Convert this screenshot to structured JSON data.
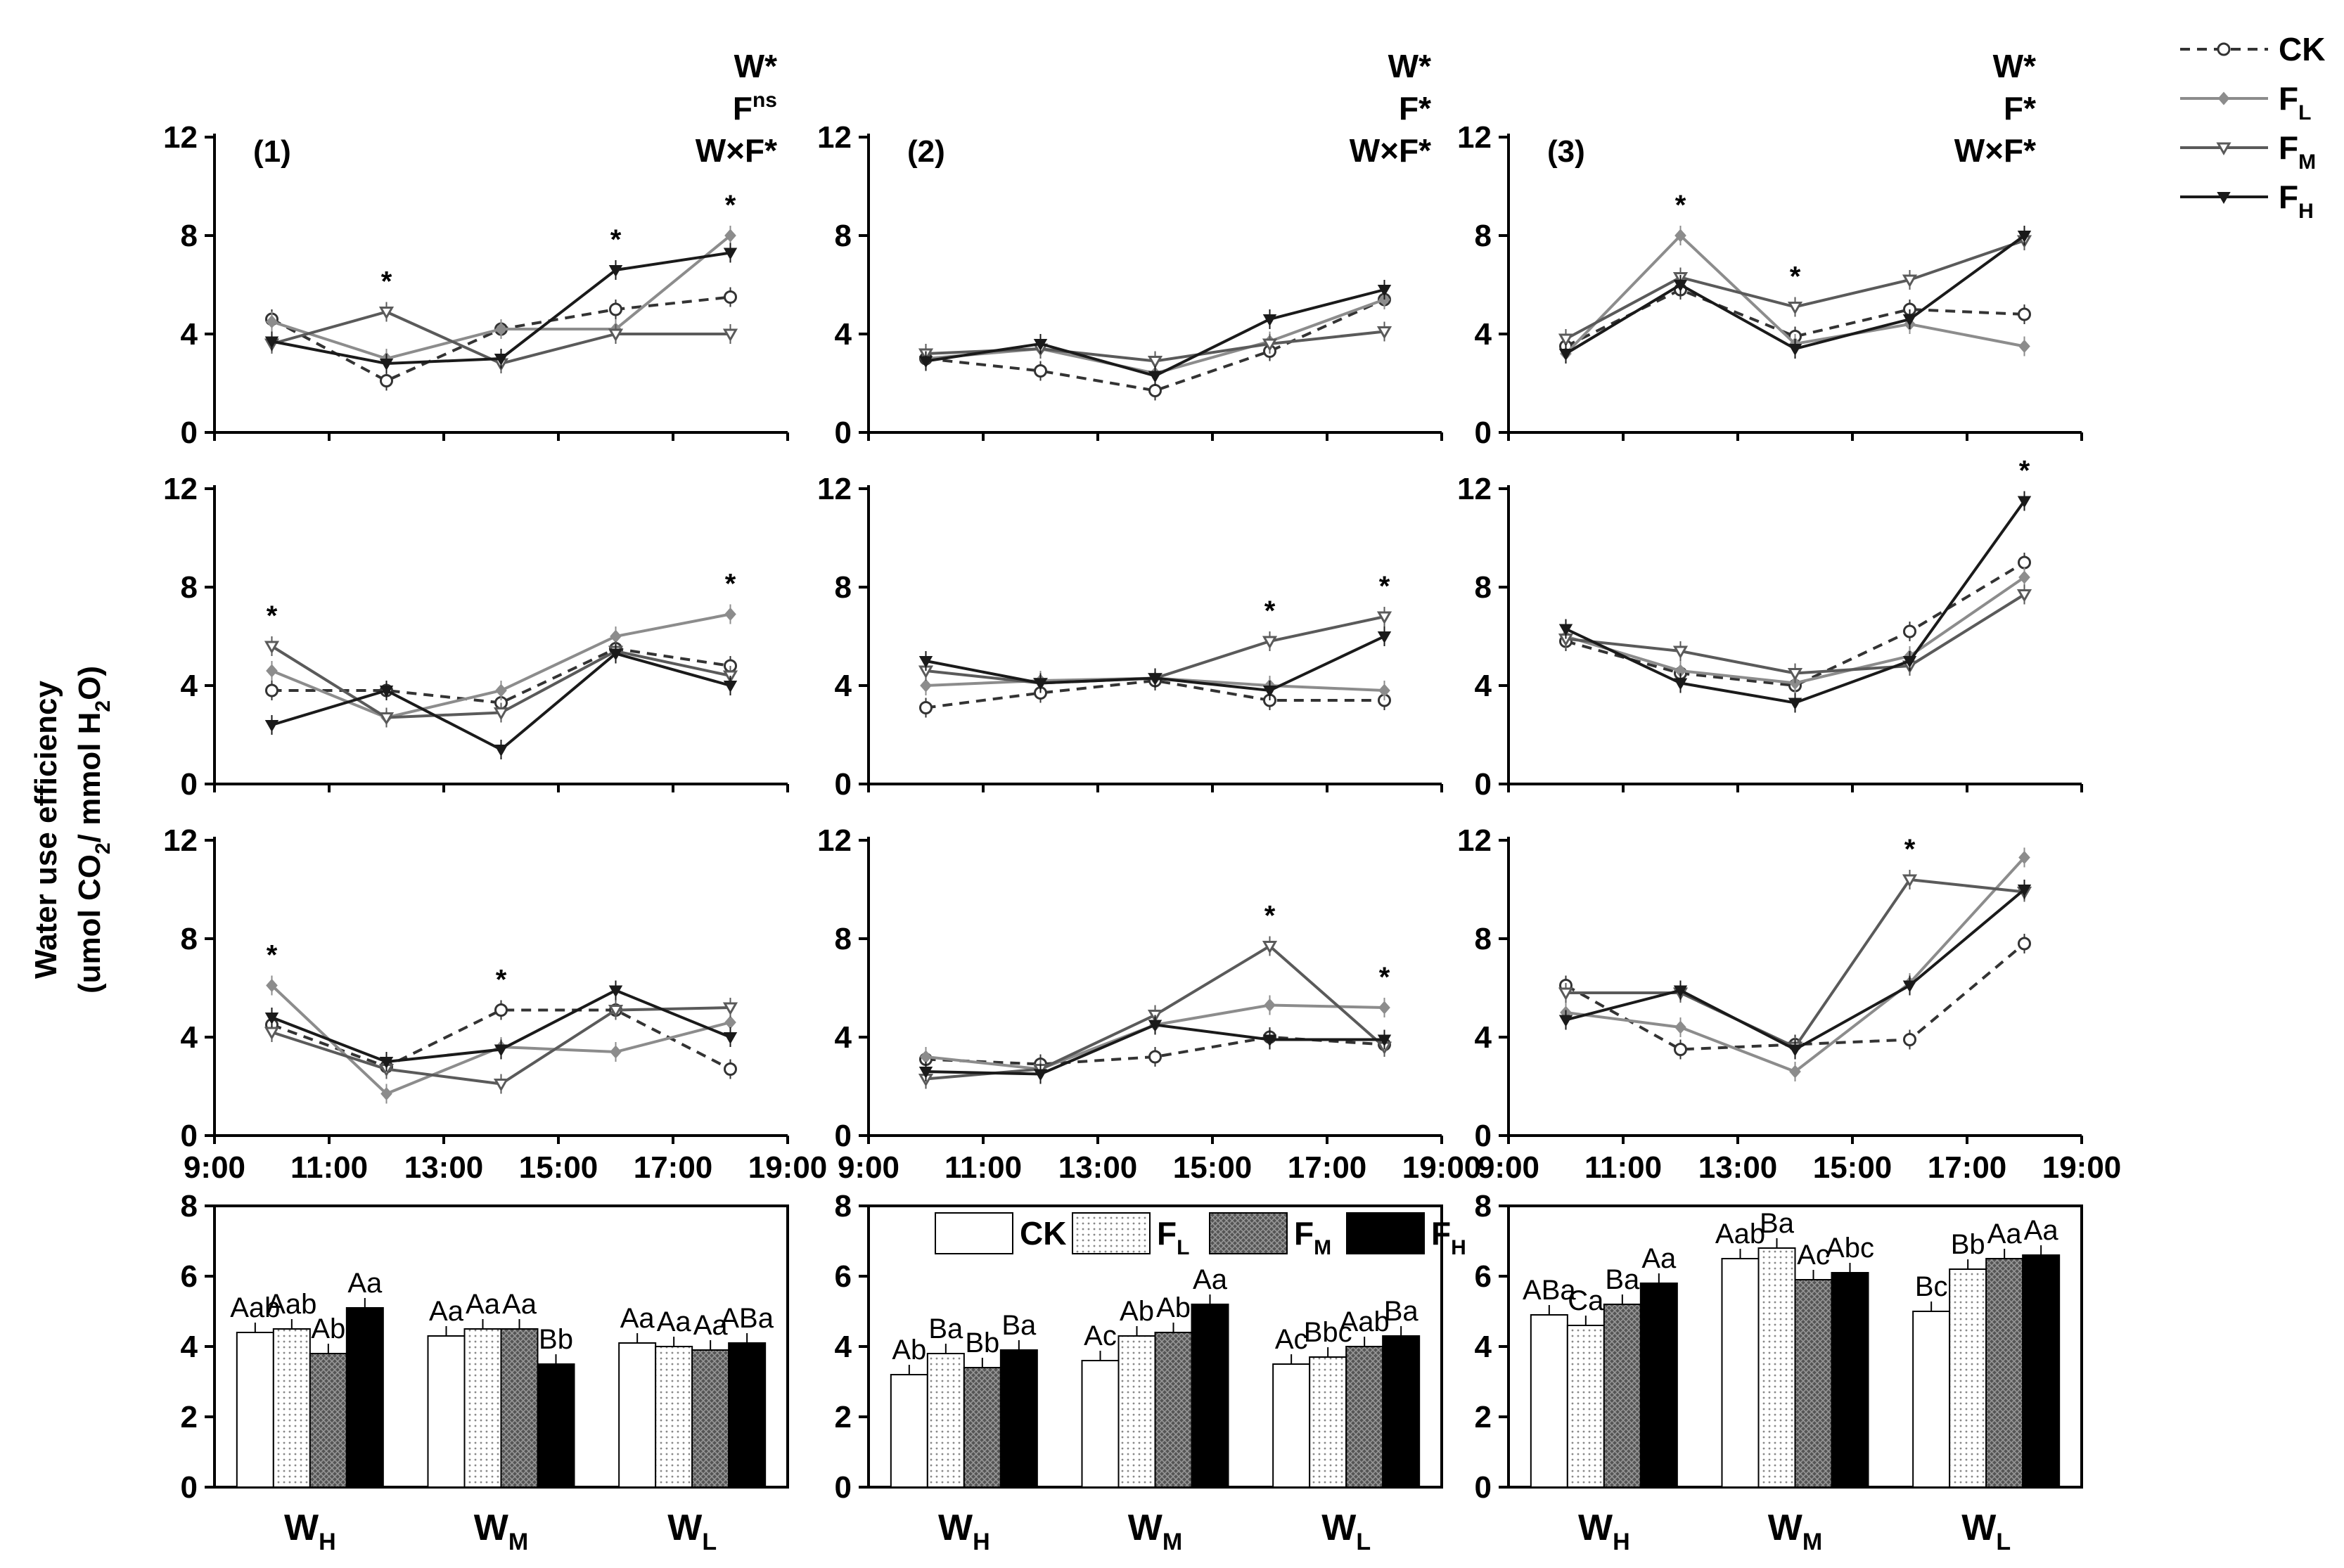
{
  "figure": {
    "y_axis_title_line1": "Water use efficiency",
    "y_axis_title_line2": "(umol CO",
    "y_axis_title_sub2": "2",
    "y_axis_title_mid": "/ mmol H",
    "y_axis_title_sub3": "2",
    "y_axis_title_end": "O)"
  },
  "legend": [
    {
      "label": "CK",
      "sub": ""
    },
    {
      "label": "F",
      "sub": "L"
    },
    {
      "label": "F",
      "sub": "M"
    },
    {
      "label": "F",
      "sub": "H"
    }
  ],
  "bar_legend": [
    {
      "label": "CK",
      "sub": ""
    },
    {
      "label": "F",
      "sub": "L"
    },
    {
      "label": "F",
      "sub": "M"
    },
    {
      "label": "F",
      "sub": "H"
    }
  ],
  "colors": {
    "CK": "#ffffff",
    "FL": "#e6e6e6",
    "FM": "#7a7a7a",
    "FH": "#000000",
    "line_ck": "#333333",
    "line_fl": "#8c8c8c",
    "line_fm": "#5a5a5a",
    "line_fh": "#1a1a1a"
  },
  "chart_data": [
    {
      "type": "line",
      "panel": "(1)",
      "row": 1,
      "col": 1,
      "x": [
        "10:00",
        "12:00",
        "14:00",
        "16:00",
        "18:00"
      ],
      "xlim": [
        "9:00",
        "19:00"
      ],
      "ylim": [
        0,
        12
      ],
      "yticks": [
        0,
        4,
        8,
        12
      ],
      "series": [
        {
          "name": "CK",
          "values": [
            4.6,
            2.1,
            4.2,
            5.0,
            5.5
          ]
        },
        {
          "name": "FL",
          "values": [
            4.5,
            3.0,
            4.2,
            4.2,
            8.0
          ]
        },
        {
          "name": "FM",
          "values": [
            3.6,
            4.9,
            2.8,
            4.0,
            4.0
          ]
        },
        {
          "name": "FH",
          "values": [
            3.7,
            2.8,
            3.0,
            6.6,
            7.3
          ]
        }
      ],
      "significance": [
        "",
        "*",
        "",
        "*",
        "*"
      ],
      "stats": [
        "W*",
        "F",
        "W×F*"
      ],
      "stats_sup": [
        "",
        "ns",
        ""
      ]
    },
    {
      "type": "line",
      "panel": "(2)",
      "row": 1,
      "col": 2,
      "x": [
        "10:00",
        "12:00",
        "14:00",
        "16:00",
        "18:00"
      ],
      "xlim": [
        "9:00",
        "19:00"
      ],
      "ylim": [
        0,
        12
      ],
      "yticks": [
        0,
        4,
        8,
        12
      ],
      "series": [
        {
          "name": "CK",
          "values": [
            3.0,
            2.5,
            1.7,
            3.3,
            5.4
          ]
        },
        {
          "name": "FL",
          "values": [
            3.0,
            3.4,
            2.4,
            3.7,
            5.4
          ]
        },
        {
          "name": "FM",
          "values": [
            3.2,
            3.4,
            2.9,
            3.6,
            4.1
          ]
        },
        {
          "name": "FH",
          "values": [
            2.9,
            3.6,
            2.3,
            4.6,
            5.8
          ]
        }
      ],
      "significance": [
        "",
        "",
        "",
        "",
        ""
      ],
      "stats": [
        "W*",
        "F*",
        "W×F*"
      ],
      "stats_sup": [
        "",
        "",
        ""
      ]
    },
    {
      "type": "line",
      "panel": "(3)",
      "row": 1,
      "col": 3,
      "x": [
        "10:00",
        "12:00",
        "14:00",
        "16:00",
        "18:00"
      ],
      "xlim": [
        "9:00",
        "19:00"
      ],
      "ylim": [
        0,
        12
      ],
      "yticks": [
        0,
        4,
        8,
        12
      ],
      "series": [
        {
          "name": "CK",
          "values": [
            3.5,
            5.8,
            3.9,
            5.0,
            4.8
          ]
        },
        {
          "name": "FL",
          "values": [
            3.2,
            8.0,
            3.6,
            4.4,
            3.5
          ]
        },
        {
          "name": "FM",
          "values": [
            3.8,
            6.3,
            5.1,
            6.2,
            7.8
          ]
        },
        {
          "name": "FH",
          "values": [
            3.2,
            6.0,
            3.4,
            4.6,
            8.0
          ]
        }
      ],
      "significance": [
        "",
        "*",
        "*",
        "",
        ""
      ],
      "stats": [
        "W*",
        "F*",
        "W×F*"
      ],
      "stats_sup": [
        "",
        "",
        ""
      ]
    },
    {
      "type": "line",
      "panel": "",
      "row": 2,
      "col": 1,
      "x": [
        "10:00",
        "12:00",
        "14:00",
        "16:00",
        "18:00"
      ],
      "xlim": [
        "9:00",
        "19:00"
      ],
      "ylim": [
        0,
        12
      ],
      "yticks": [
        0,
        4,
        8,
        12
      ],
      "series": [
        {
          "name": "CK",
          "values": [
            3.8,
            3.8,
            3.3,
            5.5,
            4.8
          ]
        },
        {
          "name": "FL",
          "values": [
            4.6,
            2.7,
            3.8,
            6.0,
            6.9
          ]
        },
        {
          "name": "FM",
          "values": [
            5.6,
            2.7,
            2.9,
            5.4,
            4.4
          ]
        },
        {
          "name": "FH",
          "values": [
            2.4,
            3.8,
            1.4,
            5.3,
            4.0
          ]
        }
      ],
      "significance": [
        "*",
        "",
        "",
        "",
        "*"
      ],
      "stats": [],
      "stats_sup": []
    },
    {
      "type": "line",
      "panel": "",
      "row": 2,
      "col": 2,
      "x": [
        "10:00",
        "12:00",
        "14:00",
        "16:00",
        "18:00"
      ],
      "xlim": [
        "9:00",
        "19:00"
      ],
      "ylim": [
        0,
        12
      ],
      "yticks": [
        0,
        4,
        8,
        12
      ],
      "series": [
        {
          "name": "CK",
          "values": [
            3.1,
            3.7,
            4.2,
            3.4,
            3.4
          ]
        },
        {
          "name": "FL",
          "values": [
            4.0,
            4.2,
            4.3,
            4.0,
            3.8
          ]
        },
        {
          "name": "FM",
          "values": [
            4.6,
            4.1,
            4.3,
            5.8,
            6.8
          ]
        },
        {
          "name": "FH",
          "values": [
            5.0,
            4.1,
            4.3,
            3.8,
            6.0
          ]
        }
      ],
      "significance": [
        "",
        "",
        "",
        "*",
        "*"
      ],
      "stats": [],
      "stats_sup": []
    },
    {
      "type": "line",
      "panel": "",
      "row": 2,
      "col": 3,
      "x": [
        "10:00",
        "12:00",
        "14:00",
        "16:00",
        "18:00"
      ],
      "xlim": [
        "9:00",
        "19:00"
      ],
      "ylim": [
        0,
        12
      ],
      "yticks": [
        0,
        4,
        8,
        12
      ],
      "series": [
        {
          "name": "CK",
          "values": [
            5.8,
            4.5,
            4.0,
            6.2,
            9.0
          ]
        },
        {
          "name": "FL",
          "values": [
            6.0,
            4.6,
            4.1,
            5.2,
            8.4
          ]
        },
        {
          "name": "FM",
          "values": [
            5.9,
            5.4,
            4.5,
            4.8,
            7.7
          ]
        },
        {
          "name": "FH",
          "values": [
            6.3,
            4.1,
            3.3,
            5.0,
            11.5
          ]
        }
      ],
      "significance": [
        "",
        "",
        "",
        "",
        "*"
      ],
      "stats": [],
      "stats_sup": []
    },
    {
      "type": "line",
      "panel": "",
      "row": 3,
      "col": 1,
      "x": [
        "10:00",
        "12:00",
        "14:00",
        "16:00",
        "18:00"
      ],
      "xlim": [
        "9:00",
        "19:00"
      ],
      "ylim": [
        0,
        12
      ],
      "yticks": [
        0,
        4,
        8,
        12
      ],
      "series": [
        {
          "name": "CK",
          "values": [
            4.5,
            2.8,
            5.1,
            5.1,
            2.7
          ]
        },
        {
          "name": "FL",
          "values": [
            6.1,
            1.7,
            3.6,
            3.4,
            4.6
          ]
        },
        {
          "name": "FM",
          "values": [
            4.2,
            2.7,
            2.1,
            5.1,
            5.2
          ]
        },
        {
          "name": "FH",
          "values": [
            4.8,
            3.0,
            3.5,
            5.9,
            4.0
          ]
        }
      ],
      "significance": [
        "*",
        "",
        "*",
        "",
        ""
      ],
      "stats": [],
      "stats_sup": []
    },
    {
      "type": "line",
      "panel": "",
      "row": 3,
      "col": 2,
      "x": [
        "10:00",
        "12:00",
        "14:00",
        "16:00",
        "18:00"
      ],
      "xlim": [
        "9:00",
        "19:00"
      ],
      "ylim": [
        0,
        12
      ],
      "yticks": [
        0,
        4,
        8,
        12
      ],
      "series": [
        {
          "name": "CK",
          "values": [
            3.1,
            2.9,
            3.2,
            4.0,
            3.7
          ]
        },
        {
          "name": "FL",
          "values": [
            3.2,
            2.7,
            4.5,
            5.3,
            5.2
          ]
        },
        {
          "name": "FM",
          "values": [
            2.3,
            2.7,
            4.9,
            7.7,
            3.6
          ]
        },
        {
          "name": "FH",
          "values": [
            2.6,
            2.5,
            4.5,
            3.9,
            3.9
          ]
        }
      ],
      "significance": [
        "",
        "",
        "",
        "*",
        "*"
      ],
      "stats": [],
      "stats_sup": []
    },
    {
      "type": "line",
      "panel": "",
      "row": 3,
      "col": 3,
      "x": [
        "10:00",
        "12:00",
        "14:00",
        "16:00",
        "18:00"
      ],
      "xlim": [
        "9:00",
        "19:00"
      ],
      "ylim": [
        0,
        12
      ],
      "yticks": [
        0,
        4,
        8,
        12
      ],
      "series": [
        {
          "name": "CK",
          "values": [
            6.1,
            3.5,
            3.7,
            3.9,
            7.8
          ]
        },
        {
          "name": "FL",
          "values": [
            5.0,
            4.4,
            2.6,
            6.2,
            11.3
          ]
        },
        {
          "name": "FM",
          "values": [
            5.8,
            5.8,
            3.6,
            10.4,
            9.9
          ]
        },
        {
          "name": "FH",
          "values": [
            4.7,
            5.9,
            3.5,
            6.1,
            10.0
          ]
        }
      ],
      "significance": [
        "",
        "",
        "",
        "*",
        ""
      ],
      "stats": [],
      "stats_sup": []
    },
    {
      "type": "bar",
      "panel": "bar-1",
      "col": 1,
      "ylim": [
        0,
        8
      ],
      "yticks": [
        0,
        2,
        4,
        6,
        8
      ],
      "groups": [
        {
          "cat": "W",
          "sub": "H",
          "values": [
            4.4,
            4.5,
            3.8,
            5.1
          ],
          "labels": [
            "Aab",
            "Aab",
            "Ab",
            "Aa"
          ]
        },
        {
          "cat": "W",
          "sub": "M",
          "values": [
            4.3,
            4.5,
            4.5,
            3.5
          ],
          "labels": [
            "Aa",
            "Aa",
            "Aa",
            "Bb"
          ]
        },
        {
          "cat": "W",
          "sub": "L",
          "values": [
            4.1,
            4.0,
            3.9,
            4.1
          ],
          "labels": [
            "Aa",
            "Aa",
            "Aa",
            "ABa"
          ]
        }
      ]
    },
    {
      "type": "bar",
      "panel": "bar-2",
      "col": 2,
      "ylim": [
        0,
        8
      ],
      "yticks": [
        0,
        2,
        4,
        6,
        8
      ],
      "groups": [
        {
          "cat": "W",
          "sub": "H",
          "values": [
            3.2,
            3.8,
            3.4,
            3.9
          ],
          "labels": [
            "Ab",
            "Ba",
            "Bb",
            "Ba"
          ]
        },
        {
          "cat": "W",
          "sub": "M",
          "values": [
            3.6,
            4.3,
            4.4,
            5.2
          ],
          "labels": [
            "Ac",
            "Ab",
            "Ab",
            "Aa"
          ]
        },
        {
          "cat": "W",
          "sub": "L",
          "values": [
            3.5,
            3.7,
            4.0,
            4.3
          ],
          "labels": [
            "Ac",
            "Bbc",
            "Aab",
            "Ba"
          ]
        }
      ]
    },
    {
      "type": "bar",
      "panel": "bar-3",
      "col": 3,
      "ylim": [
        0,
        8
      ],
      "yticks": [
        0,
        2,
        4,
        6,
        8
      ],
      "groups": [
        {
          "cat": "W",
          "sub": "H",
          "values": [
            4.9,
            4.6,
            5.2,
            5.8
          ],
          "labels": [
            "ABa",
            "Ca",
            "Ba",
            "Aa"
          ]
        },
        {
          "cat": "W",
          "sub": "M",
          "values": [
            6.5,
            6.8,
            5.9,
            6.1
          ],
          "labels": [
            "Aab",
            "Ba",
            "Ac",
            "Abc"
          ]
        },
        {
          "cat": "W",
          "sub": "L",
          "values": [
            5.0,
            6.2,
            6.5,
            6.6
          ],
          "labels": [
            "Bc",
            "Bb",
            "Aa",
            "Aa"
          ]
        }
      ]
    }
  ]
}
